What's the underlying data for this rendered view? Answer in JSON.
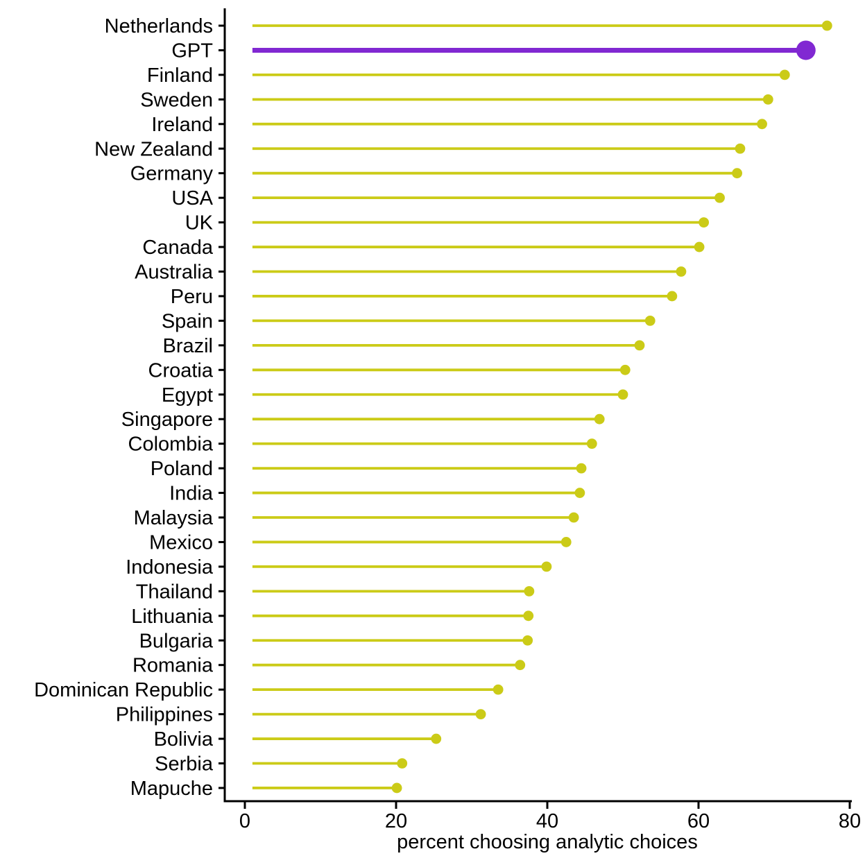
{
  "chart_data": {
    "type": "bar",
    "variant": "lollipop",
    "orientation": "horizontal",
    "title": "",
    "xlabel": "percent choosing analytic choices",
    "ylabel": "",
    "xlim": [
      0,
      80
    ],
    "x_ticks": [
      0,
      20,
      40,
      60,
      80
    ],
    "stem_start": 1,
    "grid": false,
    "legend": "none",
    "highlight_category": "GPT",
    "categories": [
      "Netherlands",
      "GPT",
      "Finland",
      "Sweden",
      "Ireland",
      "New Zealand",
      "Germany",
      "USA",
      "UK",
      "Canada",
      "Australia",
      "Peru",
      "Spain",
      "Brazil",
      "Croatia",
      "Egypt",
      "Singapore",
      "Colombia",
      "Poland",
      "India",
      "Malaysia",
      "Mexico",
      "Indonesia",
      "Thailand",
      "Lithuania",
      "Bulgaria",
      "Romania",
      "Dominican Republic",
      "Philippines",
      "Bolivia",
      "Serbia",
      "Mapuche"
    ],
    "values": [
      77.0,
      74.2,
      71.4,
      69.2,
      68.4,
      65.5,
      65.1,
      62.8,
      60.7,
      60.1,
      57.7,
      56.5,
      53.6,
      52.2,
      50.3,
      50.0,
      46.9,
      45.9,
      44.5,
      44.3,
      43.5,
      42.5,
      39.9,
      37.6,
      37.5,
      37.4,
      36.4,
      33.5,
      31.2,
      25.3,
      20.8,
      20.1
    ],
    "colors": {
      "stem": "#cbcb17",
      "dot": "#cbcb17",
      "highlight": "#8128d2",
      "axis": "#000000",
      "text": "#000000"
    }
  }
}
